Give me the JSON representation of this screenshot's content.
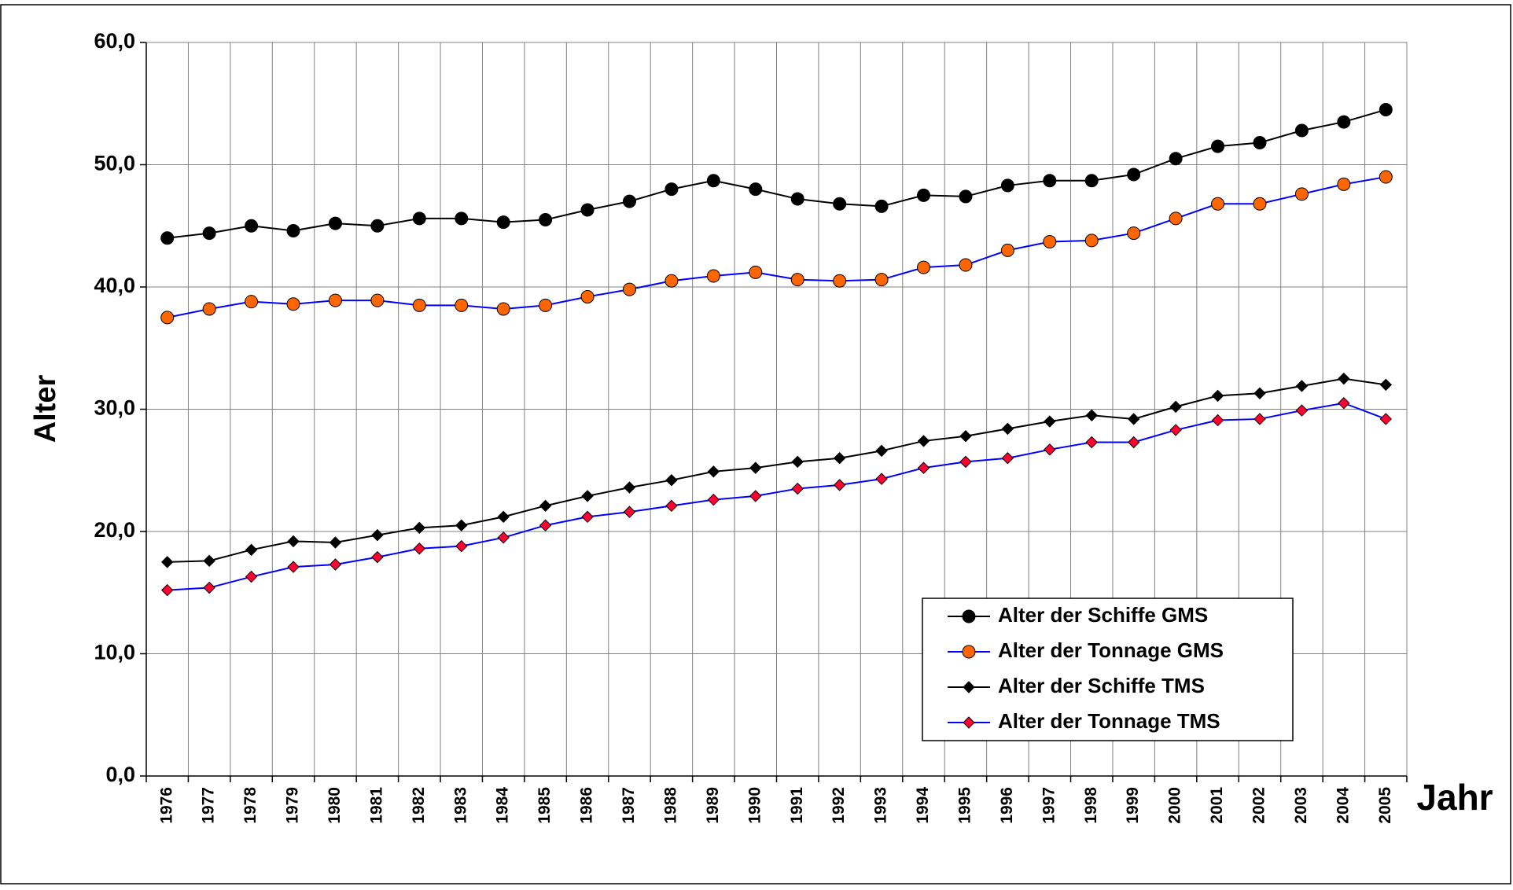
{
  "chart_data": {
    "type": "line",
    "y_label": "Alter",
    "x_label": "Jahr",
    "categories": [
      "1976",
      "1977",
      "1978",
      "1979",
      "1980",
      "1981",
      "1982",
      "1983",
      "1984",
      "1985",
      "1986",
      "1987",
      "1988",
      "1989",
      "1990",
      "1991",
      "1992",
      "1993",
      "1994",
      "1995",
      "1996",
      "1997",
      "1998",
      "1999",
      "2000",
      "2001",
      "2002",
      "2003",
      "2004",
      "2005"
    ],
    "series": [
      {
        "name": "Alter der Schiffe GMS",
        "color": "#000000",
        "marker": "circle",
        "marker_color": "#000000",
        "values": [
          44.0,
          44.4,
          45.0,
          44.6,
          45.2,
          45.0,
          45.6,
          45.6,
          45.3,
          45.5,
          46.3,
          47.0,
          48.0,
          48.7,
          48.0,
          47.2,
          46.8,
          46.6,
          47.5,
          47.4,
          48.3,
          48.7,
          48.7,
          49.2,
          50.5,
          51.5,
          51.8,
          52.8,
          53.5,
          54.5
        ]
      },
      {
        "name": "Alter der Tonnage GMS",
        "color": "#0000ff",
        "marker": "circle",
        "marker_color": "#ff6600",
        "values": [
          37.5,
          38.2,
          38.8,
          38.6,
          38.9,
          38.9,
          38.5,
          38.5,
          38.2,
          38.5,
          39.2,
          39.8,
          40.5,
          40.9,
          41.2,
          40.6,
          40.5,
          40.6,
          41.6,
          41.8,
          43.0,
          43.7,
          43.8,
          44.4,
          45.6,
          46.8,
          46.8,
          47.6,
          48.4,
          49.0
        ]
      },
      {
        "name": "Alter der Schiffe TMS",
        "color": "#000000",
        "marker": "diamond",
        "marker_color": "#000000",
        "values": [
          17.5,
          17.6,
          18.5,
          19.2,
          19.1,
          19.7,
          20.3,
          20.5,
          21.2,
          22.1,
          22.9,
          23.6,
          24.2,
          24.9,
          25.2,
          25.7,
          26.0,
          26.6,
          27.4,
          27.8,
          28.4,
          29.0,
          29.5,
          29.2,
          30.2,
          31.1,
          31.3,
          31.9,
          32.5,
          32.0
        ]
      },
      {
        "name": "Alter der Tonnage TMS",
        "color": "#0000ff",
        "marker": "diamond",
        "marker_color": "#ff0033",
        "values": [
          15.2,
          15.4,
          16.3,
          17.1,
          17.3,
          17.9,
          18.6,
          18.8,
          19.5,
          20.5,
          21.2,
          21.6,
          22.1,
          22.6,
          22.9,
          23.5,
          23.8,
          24.3,
          25.2,
          25.7,
          26.0,
          26.7,
          27.3,
          27.3,
          28.3,
          29.1,
          29.2,
          29.9,
          30.5,
          29.2
        ]
      }
    ],
    "ylim": [
      0,
      60
    ],
    "yticks": [
      {
        "value": 0,
        "label": "0,0"
      },
      {
        "value": 10,
        "label": "10,0"
      },
      {
        "value": 20,
        "label": "20,0"
      },
      {
        "value": 30,
        "label": "30,0"
      },
      {
        "value": 40,
        "label": "40,0"
      },
      {
        "value": 50,
        "label": "50,0"
      },
      {
        "value": 60,
        "label": "60,0"
      }
    ],
    "grid": true,
    "legend_position": "lower right"
  }
}
